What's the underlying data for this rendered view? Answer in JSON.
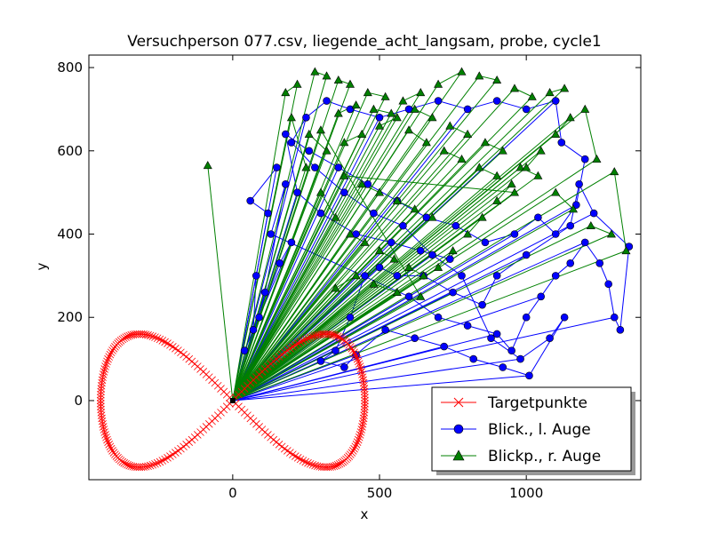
{
  "chart_data": {
    "type": "scatter",
    "title": "Versuchperson 077.csv, liegende_acht_langsam, probe, cycle1",
    "xlabel": "x",
    "ylabel": "y",
    "xlim": [
      -490,
      1390
    ],
    "ylim": [
      -190,
      830
    ],
    "xticks": [
      0,
      500,
      1000
    ],
    "yticks": [
      0,
      200,
      400,
      600,
      800
    ],
    "grid": false,
    "legend_position": "lower-right",
    "origin": [
      0,
      0
    ],
    "series": [
      {
        "name": "Targetpunkte",
        "color": "#ff0000",
        "marker": "x",
        "shape": "figure-eight",
        "center": [
          0,
          0
        ],
        "x_extent": [
          -450,
          450
        ],
        "y_extent": [
          -160,
          160
        ],
        "point_count": 280
      },
      {
        "name": "Blick., l. Auge",
        "color": "#0000ff",
        "marker": "circle",
        "cluster_points": [
          [
            120,
            450
          ],
          [
            60,
            480
          ],
          [
            150,
            560
          ],
          [
            80,
            300
          ],
          [
            70,
            170
          ],
          [
            40,
            120
          ],
          [
            200,
            380
          ],
          [
            160,
            330
          ],
          [
            90,
            200
          ],
          [
            110,
            260
          ],
          [
            180,
            520
          ],
          [
            130,
            400
          ],
          [
            600,
            250
          ],
          [
            700,
            200
          ],
          [
            800,
            180
          ],
          [
            900,
            160
          ],
          [
            950,
            120
          ],
          [
            1000,
            200
          ],
          [
            1050,
            250
          ],
          [
            1100,
            300
          ],
          [
            1150,
            330
          ],
          [
            1200,
            380
          ],
          [
            1250,
            330
          ],
          [
            1280,
            280
          ],
          [
            1300,
            200
          ],
          [
            1320,
            170
          ],
          [
            1350,
            370
          ],
          [
            1230,
            450
          ],
          [
            1180,
            520
          ],
          [
            1150,
            420
          ],
          [
            1000,
            350
          ],
          [
            900,
            300
          ],
          [
            850,
            230
          ],
          [
            750,
            260
          ],
          [
            650,
            300
          ],
          [
            560,
            300
          ],
          [
            500,
            320
          ],
          [
            450,
            300
          ],
          [
            400,
            200
          ],
          [
            350,
            120
          ],
          [
            300,
            95
          ],
          [
            380,
            80
          ],
          [
            420,
            110
          ],
          [
            520,
            170
          ],
          [
            620,
            150
          ],
          [
            720,
            130
          ],
          [
            820,
            100
          ],
          [
            920,
            80
          ],
          [
            1010,
            60
          ],
          [
            1130,
            200
          ],
          [
            1080,
            150
          ],
          [
            980,
            100
          ],
          [
            880,
            150
          ],
          [
            780,
            300
          ],
          [
            680,
            350
          ],
          [
            580,
            420
          ],
          [
            480,
            450
          ],
          [
            380,
            500
          ],
          [
            280,
            560
          ],
          [
            200,
            620
          ],
          [
            250,
            680
          ],
          [
            320,
            720
          ],
          [
            400,
            700
          ],
          [
            500,
            680
          ],
          [
            600,
            700
          ],
          [
            700,
            720
          ],
          [
            800,
            700
          ],
          [
            900,
            720
          ],
          [
            1000,
            700
          ],
          [
            1100,
            720
          ],
          [
            1120,
            620
          ],
          [
            1200,
            580
          ],
          [
            1170,
            470
          ],
          [
            1100,
            400
          ],
          [
            1040,
            440
          ],
          [
            960,
            400
          ],
          [
            860,
            380
          ],
          [
            760,
            420
          ],
          [
            660,
            440
          ],
          [
            560,
            480
          ],
          [
            460,
            520
          ],
          [
            360,
            560
          ],
          [
            260,
            600
          ],
          [
            180,
            640
          ],
          [
            220,
            500
          ],
          [
            300,
            450
          ],
          [
            420,
            400
          ],
          [
            540,
            380
          ],
          [
            640,
            360
          ],
          [
            740,
            340
          ]
        ]
      },
      {
        "name": "Blickp., r. Auge",
        "color": "#008000",
        "marker": "triangle-up",
        "cluster_points": [
          [
            -85,
            565
          ],
          [
            180,
            740
          ],
          [
            220,
            760
          ],
          [
            280,
            790
          ],
          [
            320,
            780
          ],
          [
            360,
            770
          ],
          [
            400,
            760
          ],
          [
            460,
            740
          ],
          [
            520,
            730
          ],
          [
            580,
            720
          ],
          [
            640,
            740
          ],
          [
            700,
            760
          ],
          [
            780,
            790
          ],
          [
            840,
            780
          ],
          [
            900,
            770
          ],
          [
            960,
            750
          ],
          [
            1020,
            730
          ],
          [
            1080,
            740
          ],
          [
            1130,
            750
          ],
          [
            1200,
            700
          ],
          [
            1240,
            580
          ],
          [
            1300,
            550
          ],
          [
            1340,
            360
          ],
          [
            1290,
            400
          ],
          [
            1220,
            420
          ],
          [
            1160,
            460
          ],
          [
            1100,
            500
          ],
          [
            1040,
            540
          ],
          [
            980,
            560
          ],
          [
            920,
            600
          ],
          [
            860,
            620
          ],
          [
            800,
            640
          ],
          [
            740,
            660
          ],
          [
            680,
            680
          ],
          [
            620,
            700
          ],
          [
            560,
            680
          ],
          [
            500,
            660
          ],
          [
            440,
            640
          ],
          [
            380,
            620
          ],
          [
            320,
            600
          ],
          [
            260,
            640
          ],
          [
            200,
            680
          ],
          [
            250,
            560
          ],
          [
            300,
            500
          ],
          [
            350,
            440
          ],
          [
            400,
            400
          ],
          [
            450,
            380
          ],
          [
            500,
            360
          ],
          [
            550,
            340
          ],
          [
            600,
            320
          ],
          [
            650,
            300
          ],
          [
            700,
            320
          ],
          [
            750,
            360
          ],
          [
            800,
            400
          ],
          [
            850,
            440
          ],
          [
            900,
            480
          ],
          [
            950,
            520
          ],
          [
            1000,
            560
          ],
          [
            1050,
            600
          ],
          [
            1100,
            640
          ],
          [
            1150,
            680
          ],
          [
            350,
            270
          ],
          [
            420,
            300
          ],
          [
            480,
            280
          ],
          [
            560,
            260
          ],
          [
            640,
            250
          ],
          [
            300,
            650
          ],
          [
            360,
            690
          ],
          [
            420,
            710
          ],
          [
            480,
            700
          ],
          [
            540,
            690
          ],
          [
            600,
            650
          ],
          [
            660,
            620
          ],
          [
            720,
            600
          ],
          [
            780,
            580
          ],
          [
            840,
            560
          ],
          [
            900,
            540
          ],
          [
            960,
            500
          ],
          [
            380,
            540
          ],
          [
            440,
            520
          ],
          [
            500,
            500
          ],
          [
            560,
            480
          ],
          [
            620,
            460
          ],
          [
            680,
            440
          ]
        ]
      }
    ]
  }
}
